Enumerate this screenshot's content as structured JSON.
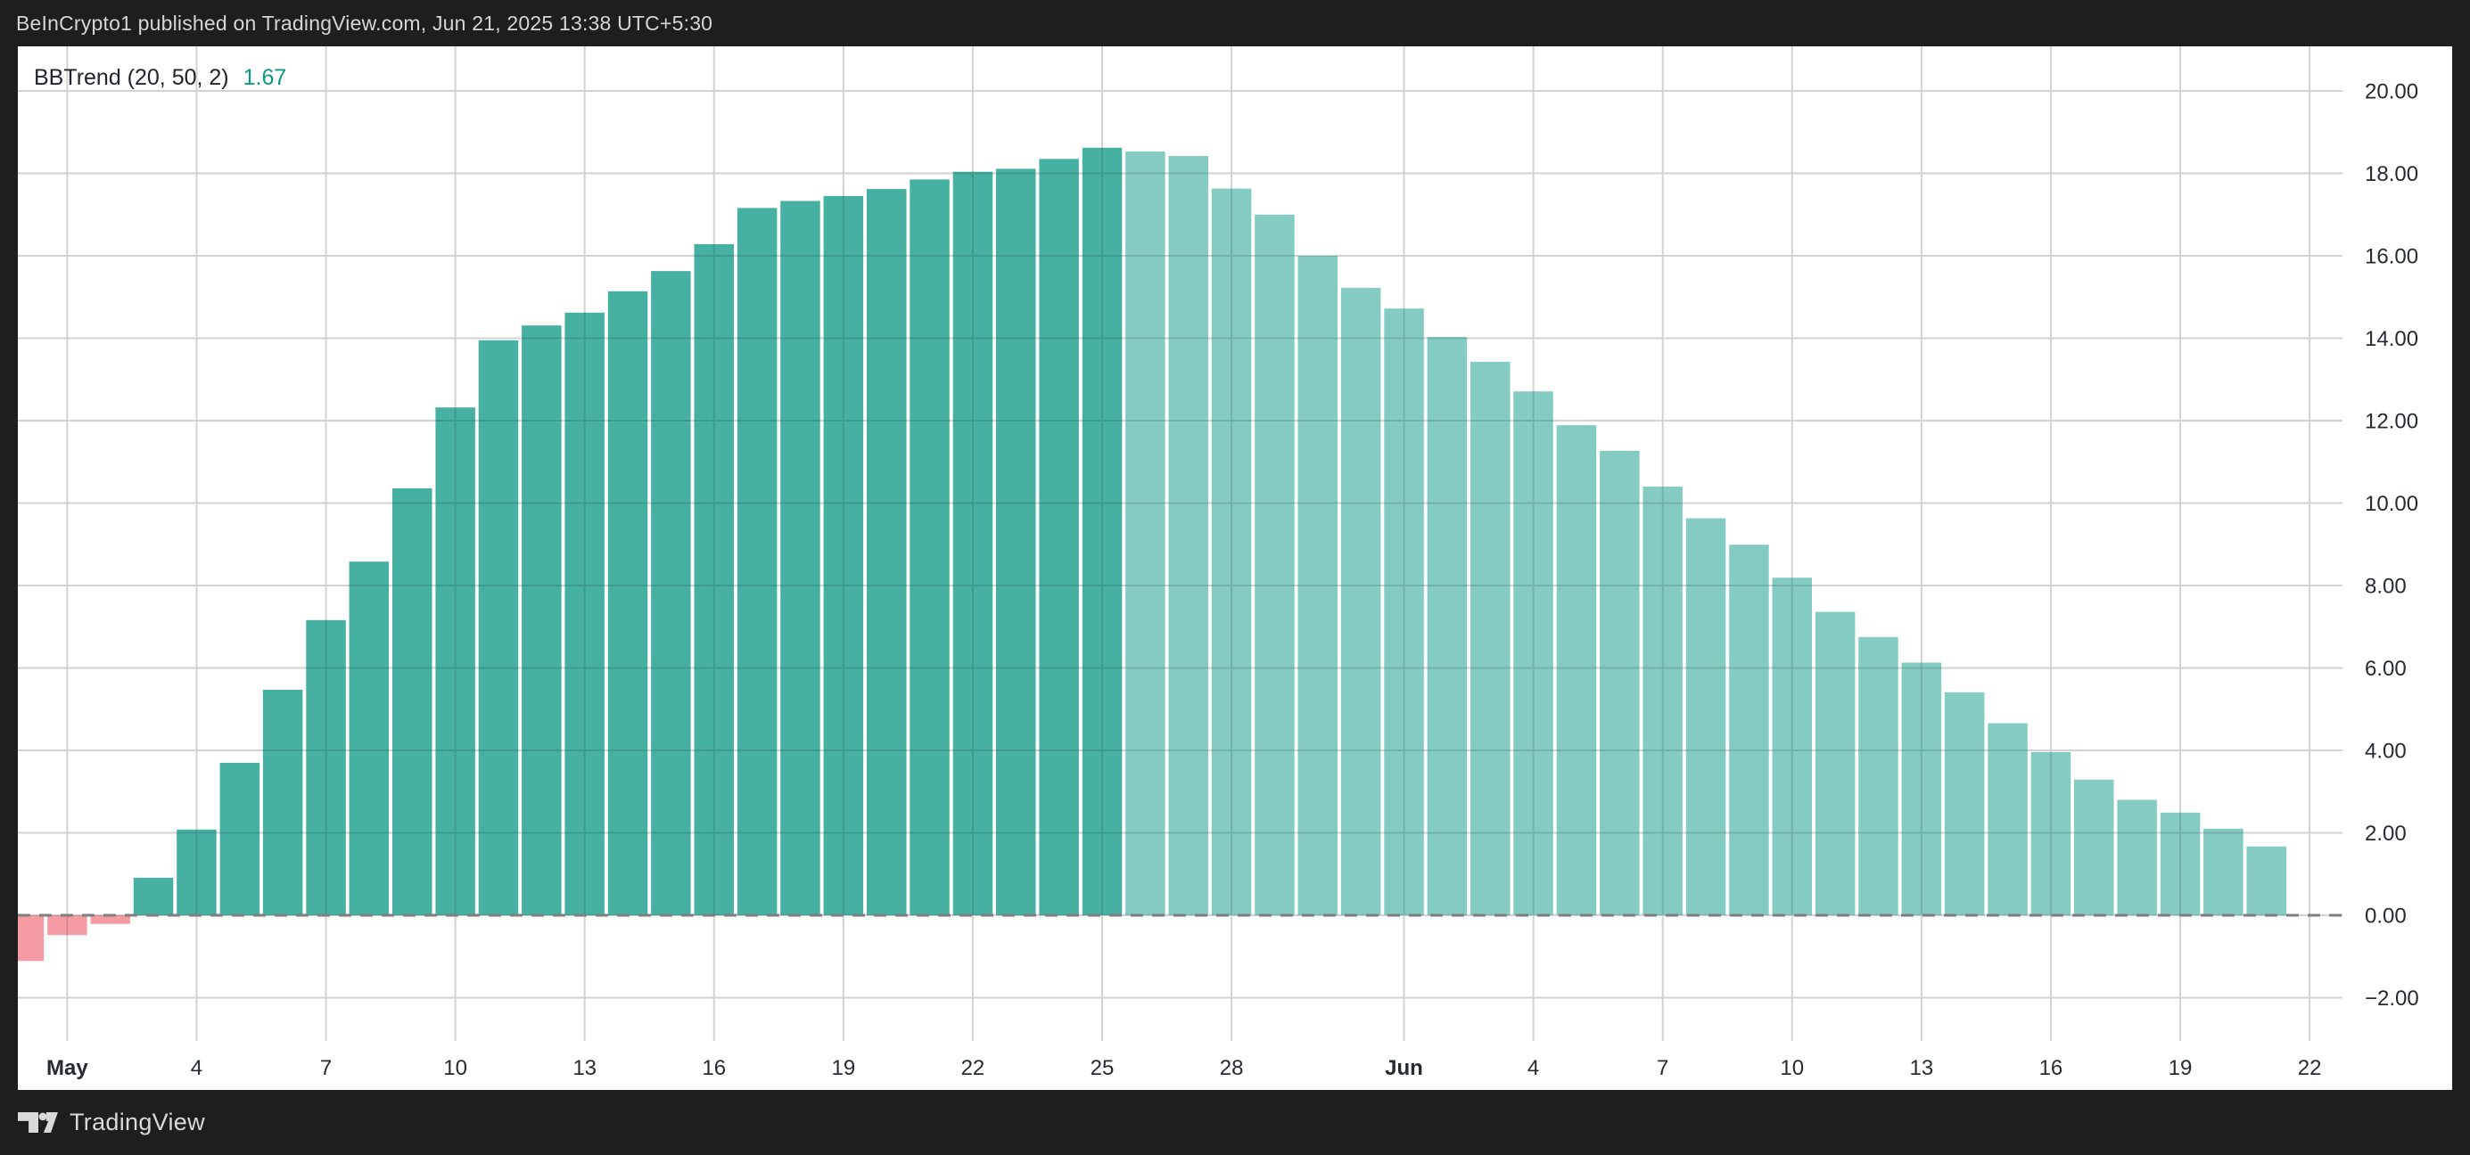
{
  "header": {
    "title": "BeInCrypto1 published on TradingView.com, Jun 21, 2025 13:38 UTC+5:30"
  },
  "legend": {
    "indicator": "BBTrend (20, 50, 2)",
    "value": "1.67"
  },
  "footer": {
    "brand": "TradingView"
  },
  "colors": {
    "frame_bg": "#1e1e1e",
    "panel_bg": "#ffffff",
    "bar_strong": "#46b1a2",
    "bar_weak": "#84ccc1",
    "bar_negative": "#f49ba3",
    "value_text": "#089981",
    "grid": "#f0f1f2",
    "zero_line": "#7e7e7e",
    "axis_text": "#262b33",
    "header_text": "#d5d5d5",
    "footer_text": "#d9d9d9"
  },
  "chart_data": {
    "type": "bar",
    "title": "BBTrend (20, 50, 2)",
    "last_value": 1.67,
    "x": [
      "Apr 30",
      "May 1",
      "May 2",
      "May 3",
      "May 4",
      "May 5",
      "May 6",
      "May 7",
      "May 8",
      "May 9",
      "May 10",
      "May 11",
      "May 12",
      "May 13",
      "May 14",
      "May 15",
      "May 16",
      "May 17",
      "May 18",
      "May 19",
      "May 20",
      "May 21",
      "May 22",
      "May 23",
      "May 24",
      "May 25",
      "May 26",
      "May 27",
      "May 28",
      "May 29",
      "May 30",
      "May 31",
      "Jun 1",
      "Jun 2",
      "Jun 3",
      "Jun 4",
      "Jun 5",
      "Jun 6",
      "Jun 7",
      "Jun 8",
      "Jun 9",
      "Jun 10",
      "Jun 11",
      "Jun 12",
      "Jun 13",
      "Jun 14",
      "Jun 15",
      "Jun 16",
      "Jun 17",
      "Jun 18",
      "Jun 19",
      "Jun 20",
      "Jun 21"
    ],
    "values": [
      -1.11,
      -0.48,
      -0.21,
      0.91,
      2.08,
      3.7,
      5.47,
      7.16,
      8.58,
      10.36,
      12.32,
      13.95,
      14.31,
      14.62,
      15.14,
      15.63,
      16.28,
      17.16,
      17.33,
      17.45,
      17.62,
      17.85,
      18.04,
      18.11,
      18.35,
      18.62,
      18.53,
      18.42,
      17.63,
      17.0,
      16.0,
      15.22,
      14.72,
      14.03,
      13.43,
      12.71,
      11.89,
      11.27,
      10.4,
      9.63,
      8.99,
      8.19,
      7.36,
      6.75,
      6.13,
      5.41,
      4.66,
      3.96,
      3.29,
      2.8,
      2.49,
      2.1,
      1.67
    ],
    "point_styles": [
      "negative",
      "negative",
      "negative",
      "strong",
      "strong",
      "strong",
      "strong",
      "strong",
      "strong",
      "strong",
      "strong",
      "strong",
      "strong",
      "strong",
      "strong",
      "strong",
      "strong",
      "strong",
      "strong",
      "strong",
      "strong",
      "strong",
      "strong",
      "strong",
      "strong",
      "strong",
      "weak",
      "weak",
      "weak",
      "weak",
      "weak",
      "weak",
      "weak",
      "weak",
      "weak",
      "weak",
      "weak",
      "weak",
      "weak",
      "weak",
      "weak",
      "weak",
      "weak",
      "weak",
      "weak",
      "weak",
      "weak",
      "weak",
      "weak",
      "weak",
      "weak",
      "weak",
      "weak"
    ],
    "style_colors": {
      "strong": "#46b1a2",
      "weak": "#84ccc1",
      "negative": "#f49ba3"
    },
    "y_ticks": [
      {
        "value": 20,
        "label": "20.00"
      },
      {
        "value": 18,
        "label": "18.00"
      },
      {
        "value": 16,
        "label": "16.00"
      },
      {
        "value": 14,
        "label": "14.00"
      },
      {
        "value": 12,
        "label": "12.00"
      },
      {
        "value": 10,
        "label": "10.00"
      },
      {
        "value": 8,
        "label": "8.00"
      },
      {
        "value": 6,
        "label": "6.00"
      },
      {
        "value": 4,
        "label": "4.00"
      },
      {
        "value": 2,
        "label": "2.00"
      },
      {
        "value": 0,
        "label": "0.00"
      },
      {
        "value": -2,
        "label": "−2.00"
      }
    ],
    "x_ticks": [
      {
        "day": 1,
        "label": "May",
        "bold": true
      },
      {
        "day": 4,
        "label": "4"
      },
      {
        "day": 7,
        "label": "7"
      },
      {
        "day": 10,
        "label": "10"
      },
      {
        "day": 13,
        "label": "13"
      },
      {
        "day": 16,
        "label": "16"
      },
      {
        "day": 19,
        "label": "19"
      },
      {
        "day": 22,
        "label": "22"
      },
      {
        "day": 25,
        "label": "25"
      },
      {
        "day": 28,
        "label": "28"
      },
      {
        "day": 32,
        "label": "Jun",
        "bold": true
      },
      {
        "day": 35,
        "label": "4"
      },
      {
        "day": 38,
        "label": "7"
      },
      {
        "day": 41,
        "label": "10"
      },
      {
        "day": 44,
        "label": "13"
      },
      {
        "day": 47,
        "label": "16"
      },
      {
        "day": 50,
        "label": "19"
      },
      {
        "day": 53,
        "label": "22"
      }
    ],
    "ylim": [
      -3.1,
      21.1
    ],
    "xlabel": "",
    "ylabel": "",
    "grid": true,
    "zero_line_style": "dashed",
    "legend_position": "top-left"
  }
}
